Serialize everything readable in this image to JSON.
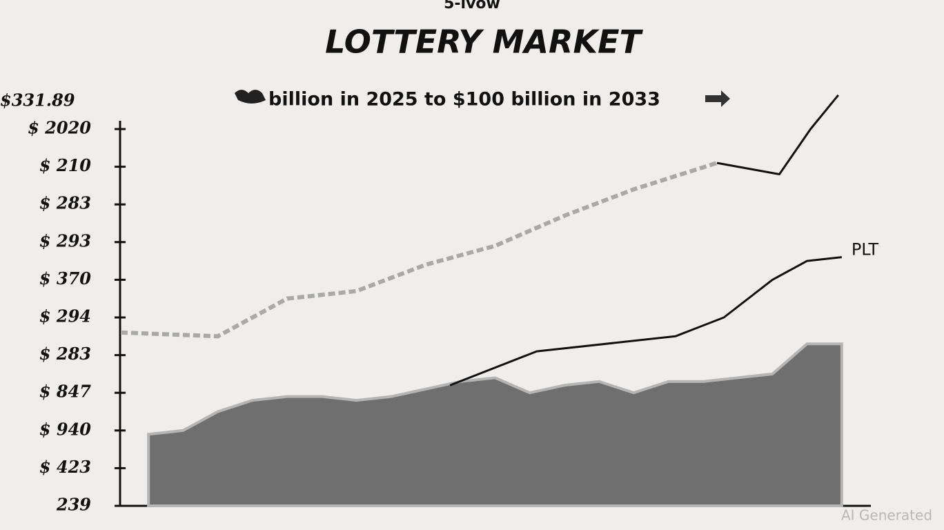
{
  "chart_data": {
    "type": "area",
    "supertitle": "5-ivow",
    "title": "LOTTERY MARKET",
    "subtitle": "billion in 2025 to $100 billion in 2033",
    "corner_label": "$331.89",
    "watermark": "AI Generated",
    "xlim": [
      -0.8,
      20.8
    ],
    "ylim": [
      0,
      10
    ],
    "yticks": [
      {
        "value": 0,
        "label": "239"
      },
      {
        "value": 1,
        "label": "$ 423"
      },
      {
        "value": 2,
        "label": "$ 940"
      },
      {
        "value": 3,
        "label": "$ 847"
      },
      {
        "value": 4,
        "label": "$ 283"
      },
      {
        "value": 5,
        "label": "$ 294"
      },
      {
        "value": 6,
        "label": "$ 370"
      },
      {
        "value": 7,
        "label": "$ 293"
      },
      {
        "value": 8,
        "label": "$ 283"
      },
      {
        "value": 9,
        "label": "$ 210"
      },
      {
        "value": 10,
        "label": "$ 2020"
      }
    ],
    "series": [
      {
        "kind": "area",
        "color": "#6f6f6f",
        "x": [
          0,
          1,
          2,
          3,
          4,
          5,
          6,
          7,
          8,
          9,
          10,
          11,
          12,
          13,
          14,
          15,
          16,
          17,
          18,
          19,
          20
        ],
        "values": [
          1.9,
          2.0,
          2.5,
          2.8,
          2.9,
          2.9,
          2.8,
          2.9,
          3.1,
          3.3,
          3.4,
          3.0,
          3.2,
          3.3,
          3.0,
          3.3,
          3.3,
          3.4,
          3.5,
          4.3,
          4.3
        ]
      },
      {
        "kind": "dashed",
        "color": "#a9a9a9",
        "x": [
          -0.8,
          2,
          4,
          6,
          8,
          10,
          12,
          14,
          16.4
        ],
        "values": [
          4.6,
          4.5,
          5.5,
          5.7,
          6.4,
          6.9,
          7.7,
          8.4,
          9.1
        ]
      },
      {
        "kind": "line",
        "color": "#111111",
        "x": [
          16.4,
          18.2,
          19.1,
          19.9
        ],
        "values": [
          9.1,
          8.8,
          10.0,
          10.9
        ]
      },
      {
        "kind": "line",
        "name": "PLT",
        "color": "#111111",
        "x": [
          8.7,
          11.2,
          15.2,
          16.6,
          18,
          19,
          20
        ],
        "values": [
          3.2,
          4.1,
          4.5,
          5.0,
          6.0,
          6.5,
          6.6
        ]
      }
    ]
  }
}
